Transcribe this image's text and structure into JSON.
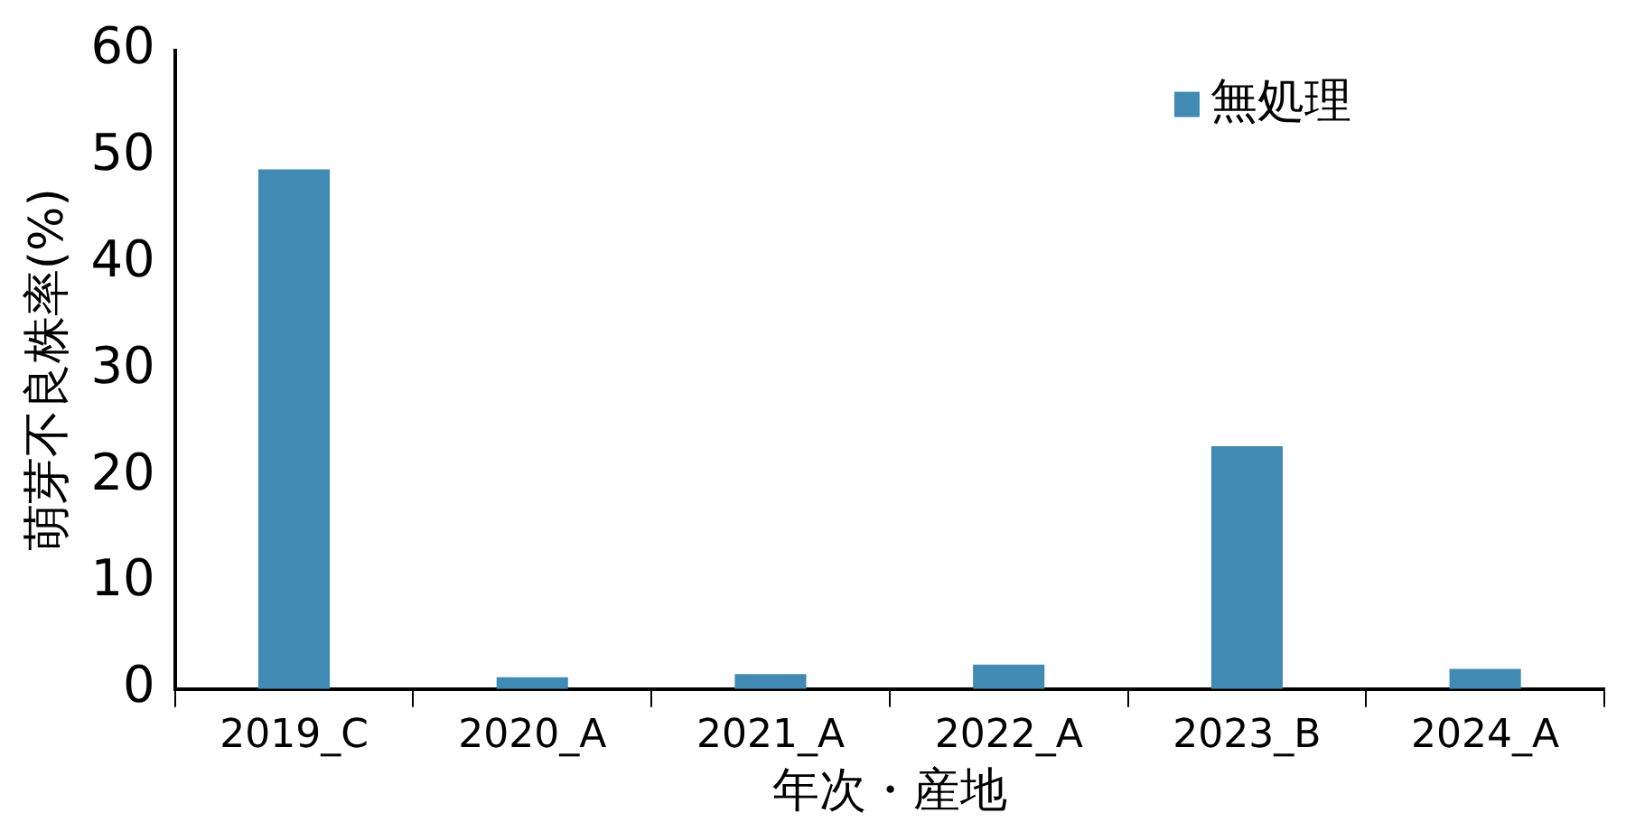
{
  "chart_data": {
    "type": "bar",
    "xlabel": "年次・産地",
    "ylabel": "萌芽不良株率(%)",
    "categories": [
      "2019_C",
      "2020_A",
      "2021_A",
      "2022_A",
      "2023_B",
      "2024_A"
    ],
    "series": [
      {
        "name": "無処理",
        "color": "#418ab3",
        "values": [
          48.8,
          1.1,
          1.4,
          2.3,
          22.8,
          1.9
        ]
      }
    ],
    "ylim": [
      0,
      60
    ],
    "yticks": [
      0,
      10,
      20,
      30,
      40,
      50,
      60
    ],
    "grid": false,
    "legend": "top right"
  }
}
